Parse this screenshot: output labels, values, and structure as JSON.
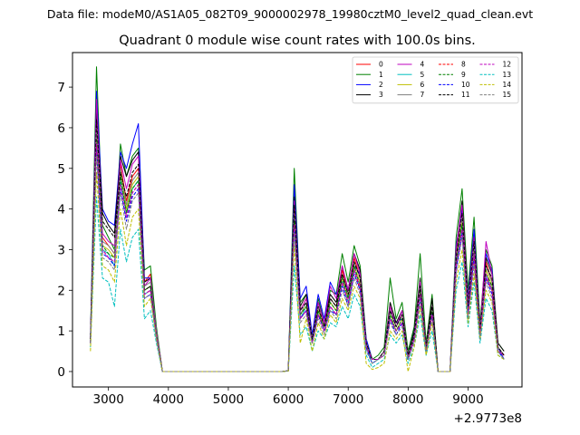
{
  "figure": {
    "suptitle": "Data file: modeM0/AS1A05_082T09_9000002978_19980cztM0_level2_quad_clean.evt"
  },
  "chart_data": {
    "type": "line",
    "title": "Quadrant 0 module wise count rates with 100.0s bins.",
    "xlabel": "",
    "ylabel": "",
    "x_offset_label": "+2.9773e8",
    "xlim": [
      2400,
      9900
    ],
    "ylim": [
      -0.38,
      7.85
    ],
    "xticks": [
      3000,
      4000,
      5000,
      6000,
      7000,
      8000,
      9000
    ],
    "yticks": [
      0,
      1,
      2,
      3,
      4,
      5,
      6,
      7
    ],
    "grid": false,
    "legend": {
      "location": "top-right",
      "columns": 4
    },
    "x": [
      2700,
      2800,
      2900,
      3000,
      3100,
      3200,
      3300,
      3400,
      3500,
      3600,
      3700,
      3800,
      3900,
      4000,
      4100,
      4200,
      4300,
      4400,
      4500,
      4600,
      4700,
      4800,
      4900,
      5000,
      5100,
      5200,
      5300,
      5400,
      5500,
      5600,
      5700,
      5800,
      5900,
      6000,
      6100,
      6200,
      6300,
      6400,
      6500,
      6600,
      6700,
      6800,
      6900,
      7000,
      7100,
      7200,
      7300,
      7400,
      7500,
      7600,
      7700,
      7800,
      7900,
      8000,
      8100,
      8200,
      8300,
      8400,
      8500,
      8600,
      8700,
      8800,
      8900,
      9000,
      9100,
      9200,
      9300,
      9400,
      9500,
      9600
    ],
    "series": [
      {
        "name": "0",
        "color": "#ff0000",
        "dash": "solid",
        "values": [
          0.8,
          6.1,
          3.3,
          3.1,
          2.9,
          5.1,
          4.2,
          4.8,
          5.0,
          2.2,
          2.4,
          1.0,
          0.0,
          0,
          0,
          0,
          0,
          0,
          0,
          0,
          0,
          0,
          0,
          0,
          0,
          0,
          0,
          0,
          0,
          0,
          0,
          0,
          0,
          0.02,
          4.0,
          1.5,
          1.8,
          0.8,
          1.6,
          1.1,
          1.8,
          1.6,
          2.5,
          1.9,
          2.8,
          2.3,
          0.7,
          0.3,
          0.3,
          0.5,
          1.6,
          1.1,
          1.4,
          0.4,
          0.9,
          2.2,
          0.6,
          1.6,
          0.0,
          0.0,
          0.0,
          2.9,
          3.8,
          1.6,
          3.2,
          1.0,
          2.7,
          2.2,
          0.6,
          0.4
        ]
      },
      {
        "name": "1",
        "color": "#008000",
        "dash": "solid",
        "values": [
          0.9,
          7.5,
          3.6,
          3.3,
          3.0,
          5.6,
          4.8,
          5.3,
          5.5,
          2.5,
          2.6,
          1.1,
          0.0,
          0,
          0,
          0,
          0,
          0,
          0,
          0,
          0,
          0,
          0,
          0,
          0,
          0,
          0,
          0,
          0,
          0,
          0,
          0,
          0,
          0.02,
          5.0,
          1.7,
          1.9,
          0.9,
          1.8,
          1.2,
          2.0,
          1.9,
          2.9,
          2.2,
          3.1,
          2.6,
          0.8,
          0.3,
          0.4,
          0.6,
          2.3,
          1.3,
          1.7,
          0.5,
          1.1,
          2.9,
          0.7,
          1.9,
          0.0,
          0.0,
          0.0,
          3.3,
          4.5,
          2.0,
          3.8,
          1.2,
          3.0,
          2.6,
          0.7,
          0.5
        ]
      },
      {
        "name": "2",
        "color": "#0000ff",
        "dash": "solid",
        "values": [
          0.8,
          6.9,
          4.0,
          3.7,
          3.6,
          5.4,
          5.0,
          5.6,
          6.1,
          2.3,
          2.3,
          1.0,
          0.0,
          0,
          0,
          0,
          0,
          0,
          0,
          0,
          0,
          0,
          0,
          0,
          0,
          0,
          0,
          0,
          0,
          0,
          0,
          0,
          0,
          0.02,
          4.6,
          1.8,
          2.1,
          0.9,
          1.9,
          1.3,
          2.2,
          1.9,
          2.3,
          2.0,
          2.6,
          2.4,
          0.8,
          0.3,
          0.3,
          0.5,
          1.5,
          1.2,
          1.3,
          0.4,
          1.0,
          2.1,
          0.6,
          1.5,
          0.0,
          0.0,
          0.0,
          3.1,
          4.0,
          1.8,
          3.5,
          1.0,
          2.9,
          2.5,
          0.6,
          0.3
        ]
      },
      {
        "name": "3",
        "color": "#000000",
        "dash": "solid",
        "values": [
          0.8,
          6.5,
          3.9,
          3.6,
          3.4,
          5.3,
          4.8,
          5.2,
          5.4,
          2.2,
          2.3,
          1.0,
          0.0,
          0,
          0,
          0,
          0,
          0,
          0,
          0,
          0,
          0,
          0,
          0,
          0,
          0,
          0,
          0,
          0,
          0,
          0,
          0,
          0,
          0.02,
          4.3,
          1.6,
          1.9,
          0.8,
          1.7,
          1.2,
          1.9,
          1.7,
          2.6,
          2.0,
          2.9,
          2.5,
          0.7,
          0.3,
          0.3,
          0.5,
          1.7,
          1.2,
          1.5,
          0.4,
          1.0,
          2.3,
          0.6,
          1.8,
          0.0,
          0.0,
          0.0,
          3.0,
          4.2,
          1.7,
          3.3,
          1.0,
          2.8,
          2.4,
          0.7,
          0.5
        ]
      },
      {
        "name": "4",
        "color": "#bf00bf",
        "dash": "solid",
        "values": [
          0.8,
          6.7,
          3.4,
          3.2,
          3.1,
          5.2,
          4.5,
          5.1,
          5.3,
          2.1,
          2.3,
          1.0,
          0.0,
          0,
          0,
          0,
          0,
          0,
          0,
          0,
          0,
          0,
          0,
          0,
          0,
          0,
          0,
          0,
          0,
          0,
          0,
          0,
          0,
          0.02,
          4.2,
          1.5,
          1.8,
          0.8,
          1.7,
          1.2,
          2.1,
          1.8,
          2.6,
          2.0,
          2.9,
          2.4,
          0.7,
          0.3,
          0.3,
          0.5,
          1.6,
          1.1,
          1.5,
          0.4,
          0.9,
          2.2,
          0.6,
          1.6,
          0.0,
          0.0,
          0.0,
          3.0,
          4.1,
          1.7,
          3.3,
          1.0,
          3.2,
          2.4,
          0.6,
          0.4
        ]
      },
      {
        "name": "5",
        "color": "#00bfbf",
        "dash": "solid",
        "values": [
          0.7,
          5.8,
          3.0,
          2.9,
          2.6,
          4.7,
          3.9,
          4.5,
          4.7,
          1.9,
          2.0,
          0.9,
          0.0,
          0,
          0,
          0,
          0,
          0,
          0,
          0,
          0,
          0,
          0,
          0,
          0,
          0,
          0,
          0,
          0,
          0,
          0,
          0,
          0,
          0.02,
          3.7,
          1.3,
          1.6,
          0.7,
          1.4,
          1.0,
          1.6,
          1.4,
          2.2,
          1.7,
          2.5,
          2.1,
          0.6,
          0.2,
          0.3,
          0.4,
          1.3,
          1.0,
          1.2,
          0.3,
          0.8,
          1.9,
          0.5,
          1.4,
          0.0,
          0.0,
          0.0,
          2.6,
          3.6,
          1.4,
          2.9,
          0.9,
          2.4,
          2.0,
          0.5,
          0.3
        ]
      },
      {
        "name": "6",
        "color": "#bfbf00",
        "dash": "solid",
        "values": [
          0.7,
          5.9,
          3.1,
          3.0,
          2.8,
          4.9,
          4.0,
          4.6,
          4.8,
          2.0,
          2.1,
          0.9,
          0.0,
          0,
          0,
          0,
          0,
          0,
          0,
          0,
          0,
          0,
          0,
          0,
          0,
          0,
          0,
          0,
          0,
          0,
          0,
          0,
          0,
          0.02,
          3.8,
          1.4,
          1.6,
          0.8,
          1.5,
          1.1,
          1.7,
          1.5,
          2.3,
          1.8,
          2.6,
          2.2,
          0.6,
          0.3,
          0.3,
          0.4,
          1.4,
          1.0,
          1.3,
          0.3,
          0.8,
          2.0,
          0.5,
          1.5,
          0.0,
          0.0,
          0.0,
          2.7,
          3.7,
          1.5,
          3.0,
          0.9,
          2.5,
          2.1,
          0.6,
          0.4
        ]
      },
      {
        "name": "7",
        "color": "#808080",
        "dash": "solid",
        "values": [
          0.8,
          6.0,
          3.2,
          3.1,
          2.9,
          5.0,
          4.1,
          4.7,
          4.9,
          2.1,
          2.2,
          1.0,
          0.0,
          0,
          0,
          0,
          0,
          0,
          0,
          0,
          0,
          0,
          0,
          0,
          0,
          0,
          0,
          0,
          0,
          0,
          0,
          0,
          0,
          0.02,
          3.9,
          1.4,
          1.7,
          0.8,
          1.6,
          1.1,
          1.8,
          1.6,
          2.4,
          1.9,
          2.7,
          2.3,
          0.7,
          0.3,
          0.3,
          0.5,
          1.5,
          1.1,
          1.4,
          0.4,
          0.9,
          2.1,
          0.6,
          1.6,
          0.0,
          0.0,
          0.0,
          2.8,
          3.8,
          1.6,
          3.1,
          1.0,
          2.6,
          2.2,
          0.6,
          0.4
        ]
      },
      {
        "name": "8",
        "color": "#ff0000",
        "dash": "dashed",
        "values": [
          0.7,
          5.6,
          3.0,
          2.8,
          2.7,
          4.6,
          3.8,
          4.4,
          4.6,
          1.9,
          2.0,
          0.9,
          0.0,
          0,
          0,
          0,
          0,
          0,
          0,
          0,
          0,
          0,
          0,
          0,
          0,
          0,
          0,
          0,
          0,
          0,
          0,
          0,
          0,
          0.02,
          3.6,
          1.3,
          1.5,
          0.7,
          1.4,
          1.0,
          1.6,
          1.4,
          2.2,
          1.7,
          2.5,
          2.0,
          0.6,
          0.3,
          0.3,
          0.4,
          1.3,
          1.0,
          1.2,
          0.3,
          0.8,
          1.9,
          0.5,
          1.4,
          0.0,
          0.0,
          0.0,
          2.6,
          3.5,
          1.4,
          2.8,
          0.9,
          2.3,
          2.0,
          0.5,
          0.4
        ]
      },
      {
        "name": "9",
        "color": "#008000",
        "dash": "dashed",
        "values": [
          0.7,
          5.7,
          3.1,
          2.9,
          2.8,
          4.8,
          3.9,
          4.5,
          4.7,
          2.0,
          2.1,
          0.9,
          0.0,
          0,
          0,
          0,
          0,
          0,
          0,
          0,
          0,
          0,
          0,
          0,
          0,
          0,
          0,
          0,
          0,
          0,
          0,
          0,
          0,
          0.02,
          3.7,
          1.4,
          1.6,
          0.7,
          1.5,
          1.0,
          1.7,
          1.5,
          2.3,
          1.8,
          2.6,
          2.1,
          0.6,
          0.3,
          0.3,
          0.4,
          1.4,
          1.0,
          1.3,
          0.3,
          0.8,
          2.0,
          0.5,
          1.5,
          0.0,
          0.0,
          0.0,
          2.7,
          3.6,
          1.5,
          2.9,
          0.9,
          2.4,
          2.1,
          0.5,
          0.4
        ]
      },
      {
        "name": "10",
        "color": "#0000ff",
        "dash": "dashed",
        "values": [
          0.7,
          5.5,
          2.9,
          2.8,
          2.6,
          4.5,
          3.7,
          4.3,
          4.5,
          1.8,
          1.9,
          0.8,
          0.0,
          0,
          0,
          0,
          0,
          0,
          0,
          0,
          0,
          0,
          0,
          0,
          0,
          0,
          0,
          0,
          0,
          0,
          0,
          0,
          0,
          0.02,
          3.5,
          1.3,
          1.5,
          0.7,
          1.4,
          1.0,
          1.5,
          1.4,
          2.1,
          1.6,
          2.4,
          2.0,
          0.6,
          0.2,
          0.3,
          0.4,
          1.3,
          0.9,
          1.2,
          0.3,
          0.8,
          1.8,
          0.5,
          1.4,
          0.0,
          0.0,
          0.0,
          2.5,
          3.4,
          1.4,
          2.8,
          0.8,
          2.3,
          1.9,
          0.5,
          0.3
        ]
      },
      {
        "name": "11",
        "color": "#000000",
        "dash": "dashed",
        "values": [
          0.8,
          6.2,
          3.7,
          3.5,
          3.3,
          4.9,
          4.3,
          4.9,
          5.1,
          2.0,
          2.1,
          0.9,
          0.0,
          0,
          0,
          0,
          0,
          0,
          0,
          0,
          0,
          0,
          0,
          0,
          0,
          0,
          0,
          0,
          0,
          0,
          0,
          0,
          0,
          0.02,
          4.1,
          1.5,
          1.7,
          0.8,
          1.6,
          1.1,
          1.8,
          1.6,
          2.4,
          1.9,
          2.7,
          2.3,
          0.7,
          0.3,
          0.3,
          0.5,
          1.5,
          1.1,
          1.4,
          0.4,
          0.9,
          2.1,
          0.6,
          1.6,
          0.0,
          0.0,
          0.0,
          2.8,
          3.9,
          1.6,
          3.2,
          1.0,
          2.6,
          2.3,
          0.6,
          0.4
        ]
      },
      {
        "name": "12",
        "color": "#bf00bf",
        "dash": "dashed",
        "values": [
          0.7,
          5.6,
          3.0,
          2.8,
          2.7,
          4.6,
          3.8,
          4.4,
          4.6,
          1.9,
          2.0,
          0.9,
          0.0,
          0,
          0,
          0,
          0,
          0,
          0,
          0,
          0,
          0,
          0,
          0,
          0,
          0,
          0,
          0,
          0,
          0,
          0,
          0,
          0,
          0.02,
          3.6,
          1.3,
          1.5,
          0.7,
          1.4,
          1.0,
          1.6,
          1.4,
          2.2,
          1.7,
          2.5,
          2.1,
          0.6,
          0.3,
          0.3,
          0.4,
          1.3,
          1.0,
          1.2,
          0.3,
          0.8,
          1.9,
          0.5,
          1.4,
          0.0,
          0.0,
          0.0,
          2.6,
          3.5,
          1.4,
          2.9,
          0.9,
          2.4,
          2.0,
          0.5,
          0.4
        ]
      },
      {
        "name": "13",
        "color": "#00bfbf",
        "dash": "dashed",
        "values": [
          0.6,
          4.3,
          2.3,
          2.2,
          1.6,
          3.5,
          2.7,
          3.3,
          3.5,
          1.3,
          1.5,
          0.7,
          0.0,
          0,
          0,
          0,
          0,
          0,
          0,
          0,
          0,
          0,
          0,
          0,
          0,
          0,
          0,
          0,
          0,
          0,
          0,
          0,
          0,
          0.01,
          2.6,
          0.9,
          1.1,
          0.5,
          1.0,
          0.8,
          1.2,
          1.1,
          1.6,
          1.3,
          1.9,
          1.6,
          0.4,
          0.1,
          0.2,
          0.3,
          0.9,
          0.7,
          0.9,
          0.2,
          0.6,
          1.4,
          0.4,
          1.0,
          0.0,
          0.0,
          0.0,
          2.0,
          2.7,
          1.1,
          2.2,
          0.7,
          1.8,
          1.5,
          0.4,
          0.3
        ]
      },
      {
        "name": "14",
        "color": "#bfbf00",
        "dash": "dashed",
        "values": [
          0.5,
          4.9,
          2.6,
          2.5,
          2.2,
          4.0,
          3.1,
          3.8,
          4.0,
          1.6,
          1.8,
          0.8,
          0.0,
          0,
          0,
          0,
          0,
          0,
          0,
          0,
          0,
          0,
          0,
          0,
          0,
          0,
          0,
          0,
          0,
          0,
          0,
          0,
          0,
          0.01,
          3.1,
          0.7,
          1.3,
          0.5,
          1.2,
          0.8,
          1.4,
          1.2,
          1.8,
          1.5,
          2.1,
          1.8,
          0.2,
          0.05,
          0.1,
          0.2,
          1.0,
          0.8,
          1.0,
          0.0,
          0.6,
          1.6,
          0.4,
          1.2,
          0.0,
          0.0,
          0.0,
          2.2,
          3.0,
          1.2,
          2.4,
          0.8,
          2.0,
          1.7,
          0.4,
          0.3
        ]
      },
      {
        "name": "15",
        "color": "#808080",
        "dash": "dashed",
        "values": [
          0.7,
          5.3,
          2.8,
          2.7,
          2.5,
          4.4,
          3.5,
          4.2,
          4.4,
          1.8,
          1.9,
          0.8,
          0.0,
          0,
          0,
          0,
          0,
          0,
          0,
          0,
          0,
          0,
          0,
          0,
          0,
          0,
          0,
          0,
          0,
          0,
          0,
          0,
          0,
          0.02,
          3.4,
          1.2,
          1.4,
          0.7,
          1.3,
          0.9,
          1.5,
          1.3,
          2.0,
          1.6,
          2.3,
          1.9,
          0.5,
          0.2,
          0.3,
          0.4,
          1.2,
          0.9,
          1.1,
          0.3,
          0.7,
          1.7,
          0.5,
          1.3,
          0.0,
          0.0,
          0.0,
          2.4,
          3.3,
          1.3,
          2.6,
          0.8,
          2.2,
          1.8,
          0.5,
          0.3
        ]
      }
    ]
  }
}
